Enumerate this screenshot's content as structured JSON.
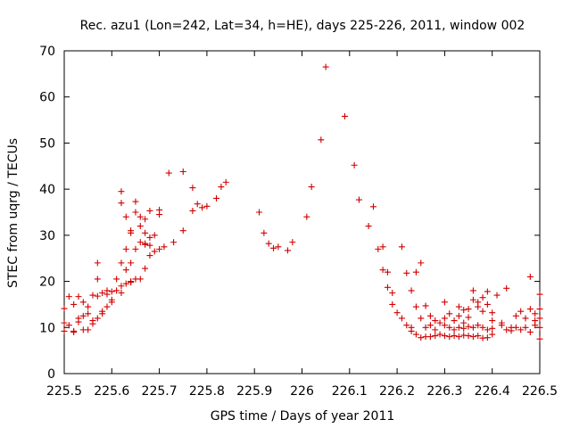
{
  "chart_data": {
    "type": "scatter",
    "title": "Rec. azu1 (Lon=242, Lat=34, h=HE), days 225-226, 2011, window 002",
    "xlabel": "GPS time / Days of year 2011",
    "ylabel": "STEC from uqrg / TECUs",
    "xlim": [
      225.5,
      226.5
    ],
    "ylim": [
      0,
      70
    ],
    "xticks": [
      "225.5",
      "225.6",
      "225.7",
      "225.8",
      "225.9",
      "226",
      "226.1",
      "226.2",
      "226.3",
      "226.4",
      "226.5"
    ],
    "yticks": [
      "0",
      "10",
      "20",
      "30",
      "40",
      "50",
      "60",
      "70"
    ],
    "grid": false,
    "legend": "none",
    "marker_color": "#d00000",
    "points": [
      [
        225.5,
        14.1
      ],
      [
        225.51,
        16.7
      ],
      [
        225.52,
        15.0
      ],
      [
        225.53,
        16.7
      ],
      [
        225.54,
        15.5
      ],
      [
        225.55,
        14.5
      ],
      [
        225.56,
        17.0
      ],
      [
        225.57,
        16.8
      ],
      [
        225.58,
        17.5
      ],
      [
        225.59,
        17.2
      ],
      [
        225.6,
        17.8
      ],
      [
        225.5,
        11.0
      ],
      [
        225.51,
        10.5
      ],
      [
        225.52,
        9.2
      ],
      [
        225.53,
        12.0
      ],
      [
        225.54,
        12.5
      ],
      [
        225.55,
        9.5
      ],
      [
        225.56,
        10.8
      ],
      [
        225.57,
        12.0
      ],
      [
        225.58,
        13.5
      ],
      [
        225.59,
        14.5
      ],
      [
        225.6,
        16.0
      ],
      [
        225.61,
        18.0
      ],
      [
        225.62,
        19.0
      ],
      [
        225.63,
        19.5
      ],
      [
        225.64,
        20.0
      ],
      [
        225.65,
        20.5
      ],
      [
        225.66,
        20.5
      ],
      [
        225.67,
        22.8
      ],
      [
        225.68,
        25.6
      ],
      [
        225.5,
        9.2
      ],
      [
        225.52,
        9.0
      ],
      [
        225.54,
        9.5
      ],
      [
        225.56,
        11.5
      ],
      [
        225.58,
        13.0
      ],
      [
        225.6,
        15.5
      ],
      [
        225.62,
        17.5
      ],
      [
        225.64,
        19.8
      ],
      [
        225.53,
        11.2
      ],
      [
        225.55,
        13.0
      ],
      [
        225.57,
        24.0
      ],
      [
        225.57,
        20.5
      ],
      [
        225.59,
        18.0
      ],
      [
        225.61,
        20.5
      ],
      [
        225.62,
        24.0
      ],
      [
        225.63,
        22.5
      ],
      [
        225.64,
        24.0
      ],
      [
        225.65,
        27.0
      ],
      [
        225.66,
        28.5
      ],
      [
        225.67,
        28.0
      ],
      [
        225.68,
        29.5
      ],
      [
        225.62,
        39.5
      ],
      [
        225.62,
        37.0
      ],
      [
        225.63,
        34.0
      ],
      [
        225.64,
        30.5
      ],
      [
        225.65,
        35.0
      ],
      [
        225.65,
        37.3
      ],
      [
        225.66,
        34.0
      ],
      [
        225.67,
        30.5
      ],
      [
        225.67,
        28.2
      ],
      [
        225.68,
        27.8
      ],
      [
        225.69,
        26.5
      ],
      [
        225.7,
        27.0
      ],
      [
        225.71,
        27.5
      ],
      [
        225.63,
        27.0
      ],
      [
        225.64,
        31.0
      ],
      [
        225.66,
        32.0
      ],
      [
        225.67,
        33.5
      ],
      [
        225.68,
        35.3
      ],
      [
        225.69,
        30.0
      ],
      [
        225.7,
        34.5
      ],
      [
        225.7,
        35.5
      ],
      [
        225.72,
        43.5
      ],
      [
        225.73,
        28.5
      ],
      [
        225.75,
        43.8
      ],
      [
        225.75,
        31.0
      ],
      [
        225.77,
        40.3
      ],
      [
        225.77,
        35.3
      ],
      [
        225.78,
        36.8
      ],
      [
        225.79,
        36.0
      ],
      [
        225.8,
        36.3
      ],
      [
        225.82,
        38.0
      ],
      [
        225.83,
        40.5
      ],
      [
        225.84,
        41.5
      ],
      [
        225.91,
        35.0
      ],
      [
        225.92,
        30.5
      ],
      [
        225.93,
        28.2
      ],
      [
        225.94,
        27.2
      ],
      [
        225.95,
        27.5
      ],
      [
        225.97,
        26.7
      ],
      [
        225.98,
        28.5
      ],
      [
        226.01,
        34.0
      ],
      [
        226.02,
        40.5
      ],
      [
        226.04,
        50.7
      ],
      [
        226.05,
        66.5
      ],
      [
        226.09,
        55.8
      ],
      [
        226.11,
        45.2
      ],
      [
        226.12,
        37.7
      ],
      [
        226.14,
        32.0
      ],
      [
        226.15,
        36.2
      ],
      [
        226.16,
        27.0
      ],
      [
        226.17,
        27.5
      ],
      [
        226.17,
        22.5
      ],
      [
        226.18,
        18.7
      ],
      [
        226.18,
        22.0
      ],
      [
        226.19,
        17.5
      ],
      [
        226.19,
        15.0
      ],
      [
        226.2,
        13.2
      ],
      [
        226.21,
        27.5
      ],
      [
        226.21,
        12.0
      ],
      [
        226.22,
        21.8
      ],
      [
        226.22,
        10.5
      ],
      [
        226.23,
        18.0
      ],
      [
        226.23,
        10.0
      ],
      [
        226.24,
        22.0
      ],
      [
        226.24,
        14.5
      ],
      [
        226.25,
        24.0
      ],
      [
        226.25,
        12.0
      ],
      [
        226.26,
        10.0
      ],
      [
        226.26,
        14.7
      ],
      [
        226.27,
        12.5
      ],
      [
        226.28,
        11.5
      ],
      [
        226.28,
        9.5
      ],
      [
        226.23,
        9.2
      ],
      [
        226.24,
        8.5
      ],
      [
        226.25,
        7.8
      ],
      [
        226.26,
        8.0
      ],
      [
        226.27,
        8.0
      ],
      [
        226.28,
        8.2
      ],
      [
        226.29,
        8.5
      ],
      [
        226.3,
        8.2
      ],
      [
        226.31,
        8.0
      ],
      [
        226.32,
        8.2
      ],
      [
        226.33,
        8.0
      ],
      [
        226.34,
        8.3
      ],
      [
        226.35,
        8.2
      ],
      [
        226.36,
        8.0
      ],
      [
        226.37,
        8.2
      ],
      [
        226.38,
        7.7
      ],
      [
        226.39,
        7.8
      ],
      [
        226.4,
        8.5
      ],
      [
        226.27,
        10.5
      ],
      [
        226.29,
        11.0
      ],
      [
        226.3,
        15.5
      ],
      [
        226.3,
        12.0
      ],
      [
        226.31,
        13.0
      ],
      [
        226.32,
        11.5
      ],
      [
        226.33,
        14.5
      ],
      [
        226.33,
        12.5
      ],
      [
        226.34,
        11.0
      ],
      [
        226.34,
        13.8
      ],
      [
        226.35,
        12.2
      ],
      [
        226.35,
        14.0
      ],
      [
        226.36,
        18.0
      ],
      [
        226.36,
        16.0
      ],
      [
        226.37,
        14.5
      ],
      [
        226.37,
        15.5
      ],
      [
        226.38,
        13.5
      ],
      [
        226.38,
        16.5
      ],
      [
        226.39,
        17.8
      ],
      [
        226.39,
        15.0
      ],
      [
        226.4,
        13.2
      ],
      [
        226.4,
        11.5
      ],
      [
        226.3,
        10.5
      ],
      [
        226.31,
        10.0
      ],
      [
        226.32,
        9.5
      ],
      [
        226.33,
        10.0
      ],
      [
        226.34,
        9.8
      ],
      [
        226.35,
        10.2
      ],
      [
        226.36,
        10.0
      ],
      [
        226.37,
        10.5
      ],
      [
        226.38,
        10.0
      ],
      [
        226.39,
        9.5
      ],
      [
        226.4,
        9.8
      ],
      [
        226.41,
        17.0
      ],
      [
        226.42,
        10.5
      ],
      [
        226.42,
        11.0
      ],
      [
        226.43,
        18.5
      ],
      [
        226.43,
        9.5
      ],
      [
        226.44,
        10.0
      ],
      [
        226.44,
        9.3
      ],
      [
        226.45,
        10.0
      ],
      [
        226.45,
        12.5
      ],
      [
        226.46,
        9.5
      ],
      [
        226.46,
        13.5
      ],
      [
        226.47,
        10.0
      ],
      [
        226.47,
        12.0
      ],
      [
        226.48,
        9.0
      ],
      [
        226.48,
        14.0
      ],
      [
        226.48,
        21.0
      ],
      [
        226.49,
        11.5
      ],
      [
        226.49,
        13.0
      ],
      [
        226.49,
        10.5
      ],
      [
        226.5,
        17.2
      ],
      [
        226.5,
        14.0
      ],
      [
        226.5,
        12.0
      ],
      [
        226.5,
        10.0
      ],
      [
        226.5,
        7.5
      ]
    ]
  }
}
